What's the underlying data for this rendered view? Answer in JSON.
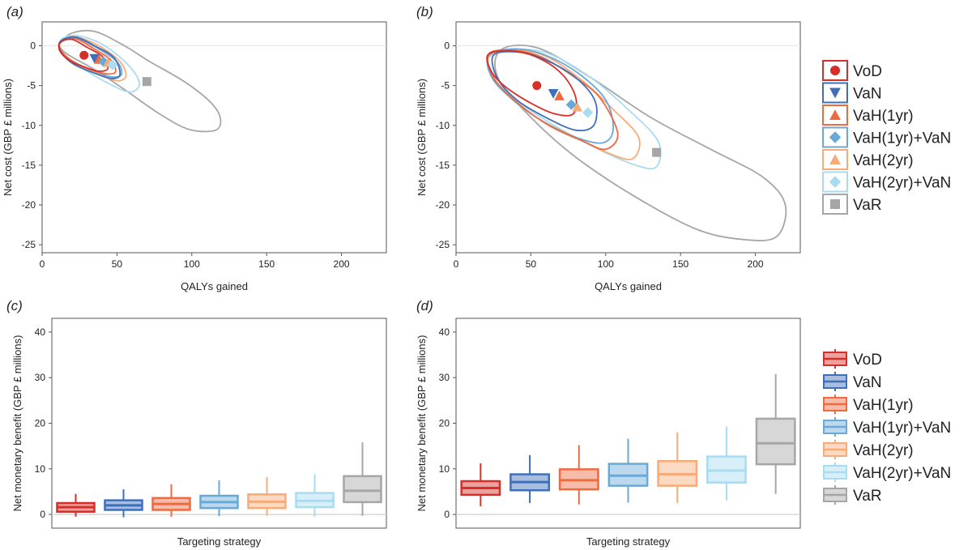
{
  "colors": {
    "VoD": "#d62f2a",
    "VaN": "#3f6fb8",
    "VaH(1yr)": "#ee6a3f",
    "VaH(1yr)+VaN": "#6aa9d6",
    "VaH(2yr)": "#f8ab78",
    "VaH(2yr)+VaN": "#a9dbf1",
    "VaR": "#a6a6a6"
  },
  "legend_top": {
    "items": [
      {
        "label": "VoD",
        "marker": "circle"
      },
      {
        "label": "VaN",
        "marker": "triangle-down"
      },
      {
        "label": "VaH(1yr)",
        "marker": "triangle-up"
      },
      {
        "label": "VaH(1yr)+VaN",
        "marker": "diamond"
      },
      {
        "label": "VaH(2yr)",
        "marker": "triangle-up"
      },
      {
        "label": "VaH(2yr)+VaN",
        "marker": "diamond"
      },
      {
        "label": "VaR",
        "marker": "square"
      }
    ]
  },
  "legend_bottom": {
    "items": [
      "VoD",
      "VaN",
      "VaH(1yr)",
      "VaH(1yr)+VaN",
      "VaH(2yr)",
      "VaH(2yr)+VaN",
      "VaR"
    ]
  },
  "chart_data": [
    {
      "id": "a",
      "panel_label": "(a)",
      "type": "scatter",
      "xlabel": "QALYs gained",
      "ylabel": "Net cost (GBP £ millions)",
      "xlim": [
        0,
        230
      ],
      "ylim": [
        -26,
        3
      ],
      "xticks": [
        "0",
        "50",
        "100",
        "150",
        "200"
      ],
      "yticks": [
        "0",
        "-5",
        "-10",
        "-15",
        "-20",
        "-25"
      ],
      "points": [
        {
          "name": "VoD",
          "x": 28,
          "y": -1.2
        },
        {
          "name": "VaN",
          "x": 35,
          "y": -1.6
        },
        {
          "name": "VaH(1yr)",
          "x": 38,
          "y": -1.7
        },
        {
          "name": "VaH(1yr)+VaN",
          "x": 41,
          "y": -2.0
        },
        {
          "name": "VaH(2yr)",
          "x": 44,
          "y": -2.1
        },
        {
          "name": "VaH(2yr)+VaN",
          "x": 47,
          "y": -2.4
        },
        {
          "name": "VaR",
          "x": 70,
          "y": -4.5
        }
      ],
      "contours": [
        {
          "name": "VaR",
          "points": [
            [
              13,
              0.5
            ],
            [
              20,
              1.6
            ],
            [
              35,
              1.8
            ],
            [
              55,
              0
            ],
            [
              72,
              -2
            ],
            [
              95,
              -4.5
            ],
            [
              112,
              -7
            ],
            [
              119,
              -9
            ],
            [
              116,
              -10.6
            ],
            [
              98,
              -10.5
            ],
            [
              78,
              -8.5
            ],
            [
              55,
              -5.5
            ],
            [
              35,
              -3
            ],
            [
              18,
              -1.2
            ],
            [
              12,
              -0.2
            ]
          ]
        },
        {
          "name": "VaH(2yr)+VaN",
          "points": [
            [
              12,
              0.6
            ],
            [
              22,
              1.3
            ],
            [
              40,
              0.2
            ],
            [
              58,
              -2.5
            ],
            [
              65,
              -4.8
            ],
            [
              58,
              -5.8
            ],
            [
              42,
              -4.5
            ],
            [
              25,
              -2.6
            ],
            [
              14,
              -1
            ]
          ]
        },
        {
          "name": "VaH(2yr)",
          "points": [
            [
              12,
              0.5
            ],
            [
              22,
              1.1
            ],
            [
              38,
              0
            ],
            [
              52,
              -2
            ],
            [
              56,
              -3.8
            ],
            [
              50,
              -4.4
            ],
            [
              38,
              -3.6
            ],
            [
              24,
              -2.4
            ],
            [
              14,
              -0.9
            ]
          ]
        },
        {
          "name": "VaH(1yr)+VaN",
          "points": [
            [
              12,
              0.5
            ],
            [
              22,
              1
            ],
            [
              36,
              -0.2
            ],
            [
              50,
              -2
            ],
            [
              53,
              -3.6
            ],
            [
              46,
              -3.9
            ],
            [
              34,
              -3.1
            ],
            [
              22,
              -2.1
            ],
            [
              13,
              -0.8
            ]
          ]
        },
        {
          "name": "VaH(1yr)",
          "points": [
            [
              12,
              0.4
            ],
            [
              22,
              0.9
            ],
            [
              34,
              -0.3
            ],
            [
              46,
              -1.8
            ],
            [
              49,
              -3.3
            ],
            [
              42,
              -3.5
            ],
            [
              30,
              -2.8
            ],
            [
              20,
              -1.9
            ],
            [
              13,
              -0.7
            ]
          ]
        },
        {
          "name": "VaN",
          "points": [
            [
              12,
              0.5
            ],
            [
              22,
              1.1
            ],
            [
              35,
              0
            ],
            [
              48,
              -1.5
            ],
            [
              52,
              -3.6
            ],
            [
              46,
              -4.1
            ],
            [
              33,
              -3.3
            ],
            [
              21,
              -2.3
            ],
            [
              13,
              -0.9
            ]
          ]
        },
        {
          "name": "VoD",
          "points": [
            [
              12,
              0.4
            ],
            [
              20,
              0.8
            ],
            [
              30,
              -0.2
            ],
            [
              40,
              -1.3
            ],
            [
              44,
              -2.8
            ],
            [
              38,
              -3.2
            ],
            [
              27,
              -2.6
            ],
            [
              18,
              -1.8
            ],
            [
              12,
              -0.7
            ]
          ]
        }
      ]
    },
    {
      "id": "b",
      "panel_label": "(b)",
      "type": "scatter",
      "xlabel": "QALYs gained",
      "ylabel": "Net cost (GBP £ millions)",
      "xlim": [
        0,
        230
      ],
      "ylim": [
        -26,
        3
      ],
      "xticks": [
        "0",
        "50",
        "100",
        "150",
        "200"
      ],
      "yticks": [
        "0",
        "-5",
        "-10",
        "-15",
        "-20",
        "-25"
      ],
      "points": [
        {
          "name": "VoD",
          "x": 54,
          "y": -5
        },
        {
          "name": "VaN",
          "x": 65,
          "y": -6
        },
        {
          "name": "VaH(1yr)",
          "x": 69,
          "y": -6.3
        },
        {
          "name": "VaH(1yr)+VaN",
          "x": 77,
          "y": -7.4
        },
        {
          "name": "VaH(2yr)",
          "x": 81,
          "y": -7.7
        },
        {
          "name": "VaH(2yr)+VaN",
          "x": 88,
          "y": -8.4
        },
        {
          "name": "VaR",
          "x": 134,
          "y": -13.4
        }
      ],
      "contours": [
        {
          "name": "VaR",
          "points": [
            [
              30,
              -0.5
            ],
            [
              55,
              -0.3
            ],
            [
              90,
              -4
            ],
            [
              130,
              -9
            ],
            [
              170,
              -13
            ],
            [
              205,
              -16.5
            ],
            [
              220,
              -20
            ],
            [
              214,
              -24
            ],
            [
              190,
              -24.3
            ],
            [
              160,
              -23
            ],
            [
              120,
              -19
            ],
            [
              80,
              -14
            ],
            [
              50,
              -9
            ],
            [
              28,
              -4
            ]
          ]
        },
        {
          "name": "VaH(2yr)+VaN",
          "points": [
            [
              22,
              -1.5
            ],
            [
              40,
              -0.5
            ],
            [
              62,
              -1
            ],
            [
              90,
              -4
            ],
            [
              115,
              -8
            ],
            [
              135,
              -12
            ],
            [
              134,
              -15.2
            ],
            [
              120,
              -15
            ],
            [
              95,
              -13
            ],
            [
              70,
              -10.5
            ],
            [
              45,
              -7.5
            ],
            [
              27,
              -4.5
            ]
          ]
        },
        {
          "name": "VaH(2yr)",
          "points": [
            [
              22,
              -1.3
            ],
            [
              40,
              -0.5
            ],
            [
              62,
              -1.5
            ],
            [
              85,
              -4.5
            ],
            [
              105,
              -8
            ],
            [
              122,
              -11.5
            ],
            [
              118,
              -14.2
            ],
            [
              102,
              -13.5
            ],
            [
              80,
              -11.5
            ],
            [
              58,
              -9.5
            ],
            [
              38,
              -6.8
            ],
            [
              25,
              -4
            ]
          ]
        },
        {
          "name": "VaH(1yr)+VaN",
          "points": [
            [
              22,
              -1.2
            ],
            [
              40,
              -0.4
            ],
            [
              60,
              -1.2
            ],
            [
              82,
              -3.5
            ],
            [
              100,
              -6.8
            ],
            [
              105,
              -10.5
            ],
            [
              98,
              -12.2
            ],
            [
              80,
              -11.5
            ],
            [
              58,
              -9.5
            ],
            [
              38,
              -6.8
            ],
            [
              24,
              -4
            ]
          ]
        },
        {
          "name": "VaH(1yr)",
          "points": [
            [
              22,
              -1
            ],
            [
              40,
              -0.6
            ],
            [
              58,
              -1.5
            ],
            [
              78,
              -3.8
            ],
            [
              96,
              -6.5
            ],
            [
              108,
              -11
            ],
            [
              100,
              -13
            ],
            [
              85,
              -12
            ],
            [
              62,
              -10
            ],
            [
              40,
              -7
            ],
            [
              25,
              -4
            ]
          ]
        },
        {
          "name": "VaN",
          "points": [
            [
              25,
              -1.2
            ],
            [
              42,
              -0.8
            ],
            [
              60,
              -1.8
            ],
            [
              80,
              -4
            ],
            [
              93,
              -7
            ],
            [
              92,
              -10
            ],
            [
              80,
              -10.6
            ],
            [
              62,
              -9.2
            ],
            [
              42,
              -7
            ],
            [
              28,
              -4.2
            ]
          ]
        },
        {
          "name": "VoD",
          "points": [
            [
              22,
              -1
            ],
            [
              40,
              -0.7
            ],
            [
              58,
              -1.8
            ],
            [
              72,
              -3.8
            ],
            [
              80,
              -6.5
            ],
            [
              78,
              -8.6
            ],
            [
              65,
              -8.5
            ],
            [
              48,
              -7
            ],
            [
              32,
              -5
            ],
            [
              23,
              -3
            ]
          ]
        }
      ]
    },
    {
      "id": "c",
      "panel_label": "(c)",
      "type": "box",
      "xlabel": "Targeting strategy",
      "ylabel": "Net monetary benefit (GBP £ millions)",
      "ylim": [
        -3,
        43
      ],
      "yticks": [
        "0",
        "10",
        "20",
        "30",
        "40"
      ],
      "boxes": [
        {
          "name": "VoD",
          "min": -0.5,
          "q1": 0.6,
          "median": 1.6,
          "q3": 2.5,
          "max": 4.5
        },
        {
          "name": "VaN",
          "min": -0.6,
          "q1": 1.0,
          "median": 2.0,
          "q3": 3.1,
          "max": 5.5
        },
        {
          "name": "VaH(1yr)",
          "min": -0.5,
          "q1": 1.0,
          "median": 2.3,
          "q3": 3.6,
          "max": 6.6
        },
        {
          "name": "VaH(1yr)+VaN",
          "min": -0.4,
          "q1": 1.4,
          "median": 2.7,
          "q3": 4.1,
          "max": 7.5
        },
        {
          "name": "VaH(2yr)",
          "min": -0.3,
          "q1": 1.4,
          "median": 2.8,
          "q3": 4.4,
          "max": 8.2
        },
        {
          "name": "VaH(2yr)+VaN",
          "min": -0.5,
          "q1": 1.6,
          "median": 3.0,
          "q3": 4.7,
          "max": 8.8
        },
        {
          "name": "VaR",
          "min": -0.3,
          "q1": 2.7,
          "median": 5.2,
          "q3": 8.4,
          "max": 15.8
        }
      ]
    },
    {
      "id": "d",
      "panel_label": "(d)",
      "type": "box",
      "xlabel": "Targeting strategy",
      "ylabel": "Net monetary benefit (GBP £ millions)",
      "ylim": [
        -3,
        43
      ],
      "yticks": [
        "0",
        "10",
        "20",
        "30",
        "40"
      ],
      "boxes": [
        {
          "name": "VoD",
          "min": 1.8,
          "q1": 4.3,
          "median": 5.8,
          "q3": 7.3,
          "max": 11.2
        },
        {
          "name": "VaN",
          "min": 2.5,
          "q1": 5.3,
          "median": 7.1,
          "q3": 8.8,
          "max": 13.0
        },
        {
          "name": "VaH(1yr)",
          "min": 2.2,
          "q1": 5.5,
          "median": 7.5,
          "q3": 9.9,
          "max": 15.2
        },
        {
          "name": "VaH(1yr)+VaN",
          "min": 2.6,
          "q1": 6.3,
          "median": 8.5,
          "q3": 11.1,
          "max": 16.6
        },
        {
          "name": "VaH(2yr)",
          "min": 2.5,
          "q1": 6.3,
          "median": 8.8,
          "q3": 11.7,
          "max": 18.0
        },
        {
          "name": "VaH(2yr)+VaN",
          "min": 3.0,
          "q1": 7.0,
          "median": 9.6,
          "q3": 12.7,
          "max": 19.3
        },
        {
          "name": "VaR",
          "min": 4.5,
          "q1": 11.0,
          "median": 15.6,
          "q3": 21.0,
          "max": 30.8
        }
      ]
    }
  ]
}
